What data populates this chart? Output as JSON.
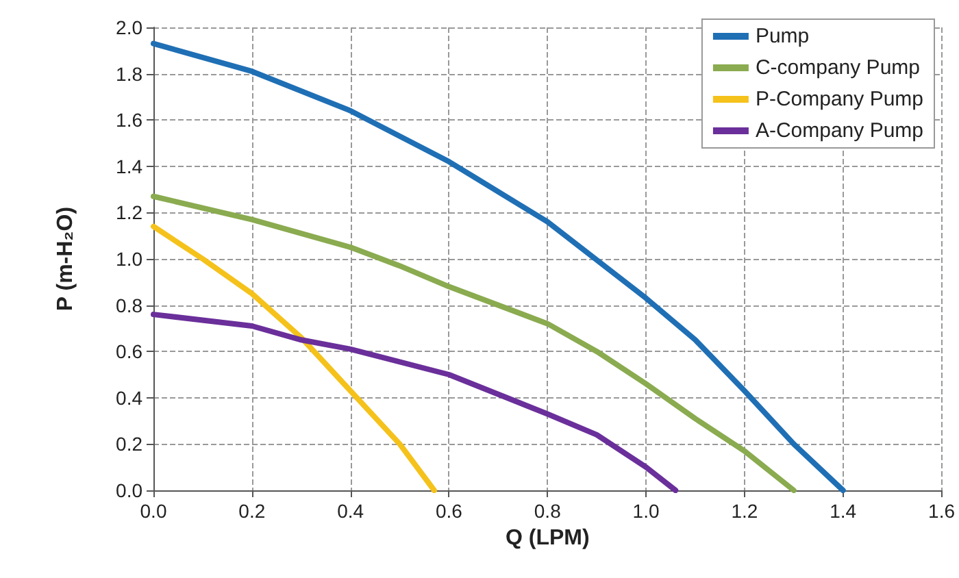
{
  "chart_data": {
    "type": "line",
    "xlabel": "Q (LPM)",
    "ylabel": "P (m-H₂O)",
    "xlim": [
      0,
      1.6
    ],
    "xticks": [
      {
        "value": 0,
        "label": "0.0"
      },
      0.2,
      0.4,
      0.6,
      0.8,
      {
        "value": 1,
        "label": "1.0"
      },
      1.2,
      1.4,
      1.6
    ],
    "ylim": [
      0,
      2.0
    ],
    "yticks": [
      {
        "value": 0,
        "label": "0.0"
      },
      0.2,
      0.4,
      0.6,
      0.8,
      {
        "value": 1,
        "label": "1.0"
      },
      1.2,
      1.4,
      1.6,
      1.8,
      {
        "value": 2,
        "label": "2.0"
      }
    ],
    "grid": true,
    "legend": "top right",
    "marker": "none",
    "series": [
      {
        "name": "Pump",
        "color": "#1f6fb5",
        "x": [
          0,
          0.2,
          0.4,
          0.6,
          0.8,
          1.0,
          1.1,
          1.2,
          1.3,
          1.4
        ],
        "values": [
          1.93,
          1.81,
          1.64,
          1.42,
          1.16,
          0.83,
          0.65,
          0.43,
          0.2,
          0
        ]
      },
      {
        "name": "C-company Pump",
        "color": "#8aab4f",
        "x": [
          0,
          0.2,
          0.4,
          0.5,
          0.6,
          0.8,
          0.9,
          1.0,
          1.1,
          1.2,
          1.3
        ],
        "values": [
          1.27,
          1.17,
          1.05,
          0.97,
          0.88,
          0.72,
          0.6,
          0.46,
          0.31,
          0.17,
          0
        ]
      },
      {
        "name": "P-Company Pump",
        "color": "#f5c21b",
        "x": [
          0,
          0.1,
          0.2,
          0.3,
          0.4,
          0.5,
          0.57
        ],
        "values": [
          1.14,
          1.0,
          0.85,
          0.66,
          0.43,
          0.2,
          0
        ]
      },
      {
        "name": "A-Company Pump",
        "color": "#6a2f9a",
        "x": [
          0,
          0.2,
          0.3,
          0.4,
          0.6,
          0.8,
          0.9,
          1.0,
          1.06
        ],
        "values": [
          0.76,
          0.71,
          0.65,
          0.61,
          0.5,
          0.33,
          0.24,
          0.1,
          0
        ]
      }
    ]
  }
}
